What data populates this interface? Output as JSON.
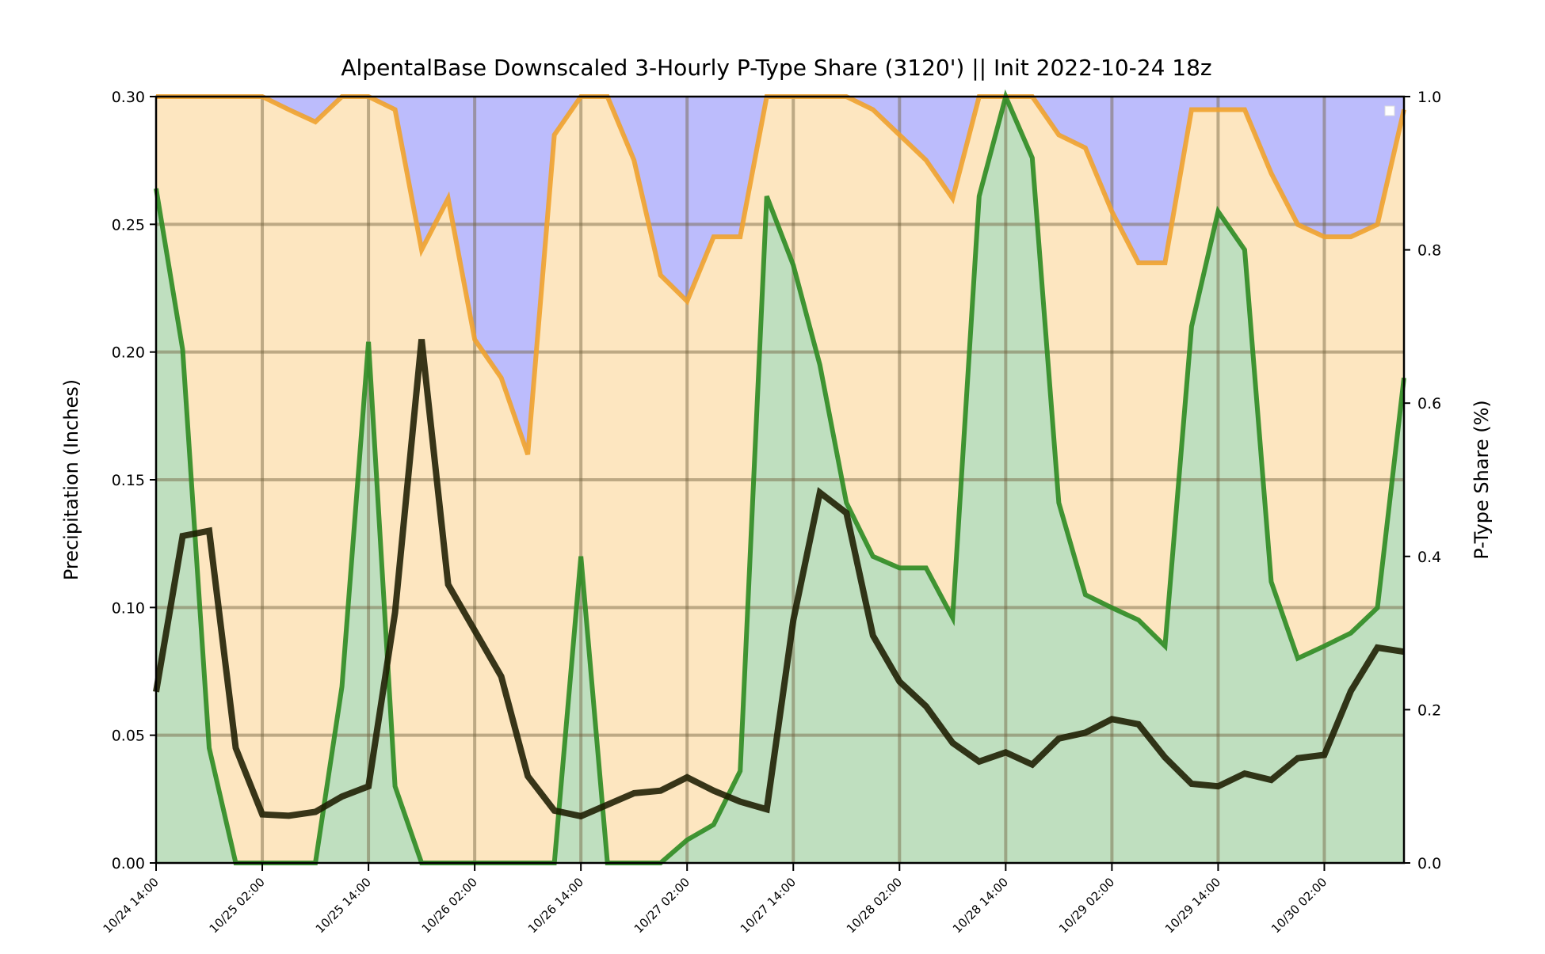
{
  "chart_data": {
    "type": "area",
    "title": "AlpentalBase Downscaled 3-Hourly P-Type Share (3120') || Init 2022-10-24 18z",
    "ylabel": "Precipitation (Inches)",
    "ylabel_right": "P-Type Share (%)",
    "ylim": [
      0,
      0.3
    ],
    "ylim_right": [
      0,
      1.0
    ],
    "yticks": [
      "0.00",
      "0.05",
      "0.10",
      "0.15",
      "0.20",
      "0.25",
      "0.30"
    ],
    "yticks_right": [
      "0.0",
      "0.2",
      "0.4",
      "0.6",
      "0.8",
      "1.0"
    ],
    "xticks": [
      "10/24 14:00",
      "10/25 02:00",
      "10/25 14:00",
      "10/26 02:00",
      "10/26 14:00",
      "10/27 02:00",
      "10/27 14:00",
      "10/28 02:00",
      "10/28 14:00",
      "10/29 02:00",
      "10/29 14:00",
      "10/30 02:00"
    ],
    "x_start": "10/24 14:00",
    "x_step_hours": 3,
    "grid": true,
    "legend": "top-right",
    "colors": {
      "rain_fill": "#bfdfbf",
      "rain_line": "#2e8b22",
      "mix_fill": "#fde6c0",
      "mix_line": "#f0a22e",
      "snow_fill": "#bcbcfc",
      "precip_line": "#1c1c00",
      "grid": "#b0a07a"
    },
    "series": [
      {
        "values": [
          0.88,
          0.67,
          0.15,
          0,
          0,
          0,
          0,
          0.23,
          0.68,
          0.1,
          0,
          0,
          0,
          0,
          0,
          0,
          0.4,
          0,
          0,
          0,
          0.03,
          0.05,
          0.12,
          0.87,
          0.78,
          0.65,
          0.47,
          0.4,
          0.385,
          0.385,
          0.32,
          0.87,
          1.0,
          0.92,
          0.47,
          0.35,
          0.333,
          0.317,
          0.283,
          0.7,
          0.85,
          0.8,
          0.367,
          0.267,
          0.283,
          0.3,
          0.333,
          0.633
        ]
      },
      {
        "values": [
          1.0,
          1.0,
          1.0,
          1.0,
          1.0,
          0.983,
          0.967,
          1.0,
          1.0,
          0.983,
          0.8,
          0.867,
          0.683,
          0.633,
          0.533,
          0.95,
          1.0,
          1.0,
          0.917,
          0.767,
          0.733,
          0.817,
          0.817,
          1.0,
          1.0,
          1.0,
          1.0,
          0.983,
          0.95,
          0.917,
          0.867,
          1.0,
          1.0,
          1.0,
          0.95,
          0.933,
          0.85,
          0.783,
          0.783,
          0.983,
          0.983,
          0.983,
          0.9,
          0.833,
          0.817,
          0.817,
          0.833,
          0.983
        ]
      },
      {
        "values": [
          0.067,
          0.128,
          0.13,
          0.045,
          0.019,
          0.0185,
          0.02,
          0.026,
          0.03,
          0.098,
          0.205,
          0.109,
          0.091,
          0.073,
          0.034,
          0.0205,
          0.0183,
          0.0228,
          0.0273,
          0.0283,
          0.0335,
          0.0283,
          0.024,
          0.021,
          0.095,
          0.145,
          0.137,
          0.089,
          0.071,
          0.0613,
          0.047,
          0.0397,
          0.0433,
          0.0385,
          0.0487,
          0.051,
          0.0563,
          0.0543,
          0.0413,
          0.031,
          0.03,
          0.035,
          0.0325,
          0.041,
          0.0423,
          0.0673,
          0.0843,
          0.0827
        ]
      }
    ]
  }
}
